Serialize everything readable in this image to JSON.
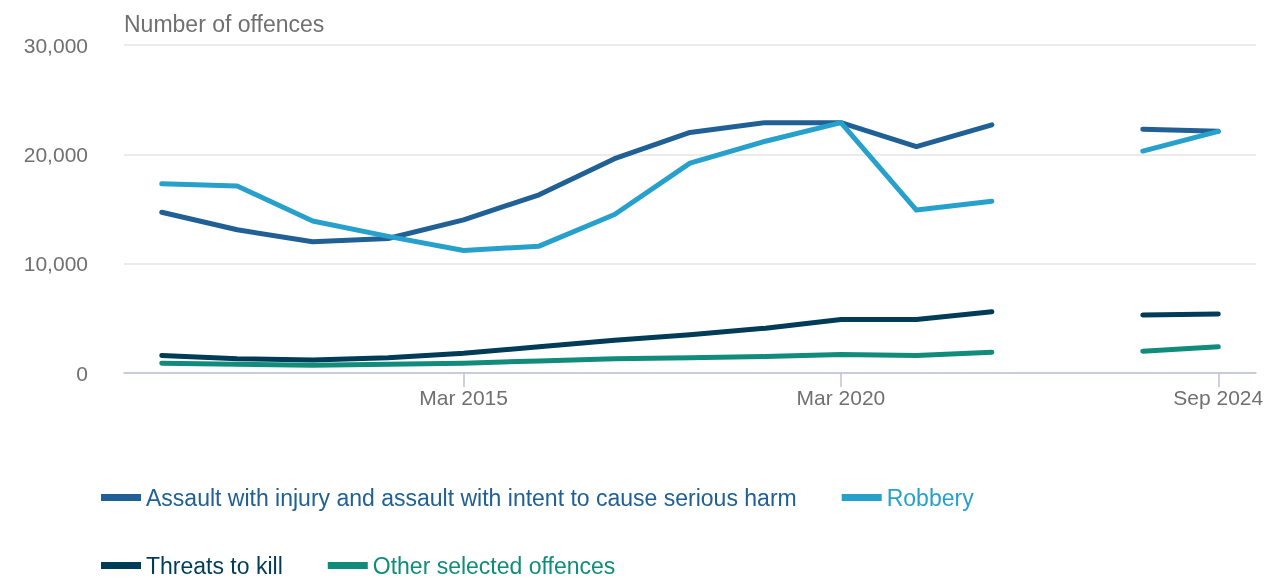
{
  "chart_data": {
    "type": "line",
    "ylabel": "Number of offences",
    "categories": [
      null,
      null,
      null,
      null,
      "Mar 2015",
      null,
      null,
      null,
      null,
      "Mar 2020",
      null,
      null,
      null,
      null,
      "Sep 2024"
    ],
    "series": [
      {
        "name": "Assault with injury and assault with intent to cause serious harm",
        "color": "#206095",
        "values": [
          14700,
          13100,
          12000,
          12300,
          14000,
          16300,
          19600,
          22000,
          22900,
          22900,
          20700,
          22700,
          null,
          22300,
          22100
        ]
      },
      {
        "name": "Robbery",
        "color": "#27a0cc",
        "values": [
          17300,
          17100,
          13900,
          12500,
          11200,
          11600,
          14500,
          19200,
          21200,
          22900,
          14900,
          15700,
          null,
          20300,
          22100
        ]
      },
      {
        "name": "Threats to kill",
        "color": "#003c57",
        "values": [
          1600,
          1300,
          1200,
          1400,
          1800,
          2400,
          3000,
          3500,
          4100,
          4900,
          4900,
          5600,
          null,
          5300,
          5400
        ]
      },
      {
        "name": "Other selected offences",
        "color": "#118c7b",
        "values": [
          900,
          800,
          700,
          800,
          900,
          1100,
          1300,
          1400,
          1500,
          1700,
          1600,
          1900,
          null,
          2000,
          2400
        ]
      }
    ],
    "ylim": [
      0,
      30000
    ],
    "yticks": [
      0,
      {
        "value": 10000,
        "label": "10,000"
      },
      {
        "value": 20000,
        "label": "20,000"
      },
      {
        "value": 30000,
        "label": "30,000"
      }
    ],
    "grid": "y",
    "legend": "bottom",
    "marker": "none",
    "line_style": "solid"
  }
}
